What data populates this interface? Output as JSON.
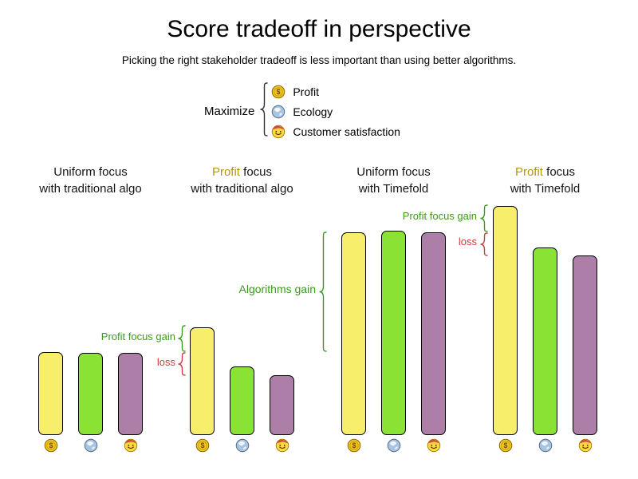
{
  "title": "Score tradeoff in perspective",
  "subtitle": "Picking the right stakeholder tradeoff is less important than using better algorithms.",
  "legend": {
    "label": "Maximize",
    "items": [
      {
        "icon": "coin-icon",
        "label": "Profit"
      },
      {
        "icon": "globe-icon",
        "label": "Ecology"
      },
      {
        "icon": "smiley-icon",
        "label": "Customer satisfaction"
      }
    ]
  },
  "colors": {
    "profit_bar": "#f7ef6b",
    "ecology_bar": "#8ae234",
    "customer_bar": "#ad7fa8",
    "gain_text": "#3c9a1e",
    "loss_text": "#c9413c",
    "profit_word": "#b8950b"
  },
  "chart_data": {
    "type": "bar",
    "value_unit": "relative score (estimated from bar heights, px)",
    "categories": [
      "Uniform focus with traditional algo",
      "Profit focus with traditional algo",
      "Uniform focus with Timefold",
      "Profit focus with Timefold"
    ],
    "groups": [
      {
        "line1_parts": [
          {
            "text": "Uniform focus"
          }
        ],
        "line2": "with traditional algo"
      },
      {
        "line1_parts": [
          {
            "text": "Profit",
            "gold": true
          },
          {
            "text": " focus"
          }
        ],
        "line2": "with traditional algo"
      },
      {
        "line1_parts": [
          {
            "text": "Uniform focus"
          }
        ],
        "line2": "with Timefold"
      },
      {
        "line1_parts": [
          {
            "text": "Profit",
            "gold": true
          },
          {
            "text": " focus"
          }
        ],
        "line2": "with Timefold"
      }
    ],
    "series": [
      {
        "name": "Profit",
        "values": [
          104,
          135,
          254,
          287
        ]
      },
      {
        "name": "Ecology",
        "values": [
          103,
          86,
          256,
          235
        ]
      },
      {
        "name": "Customer satisfaction",
        "values": [
          103,
          75,
          254,
          225
        ]
      }
    ],
    "annotations": [
      {
        "text": "Profit focus gain",
        "kind": "gain",
        "applies_to": "Profit focus with traditional algo"
      },
      {
        "text": "loss",
        "kind": "loss",
        "applies_to": "Profit focus with traditional algo"
      },
      {
        "text": "Algorithms gain",
        "kind": "gain",
        "applies_to": "Uniform focus with Timefold"
      },
      {
        "text": "Profit focus gain",
        "kind": "gain",
        "applies_to": "Profit focus with Timefold"
      },
      {
        "text": "loss",
        "kind": "loss",
        "applies_to": "Profit focus with Timefold"
      }
    ]
  }
}
